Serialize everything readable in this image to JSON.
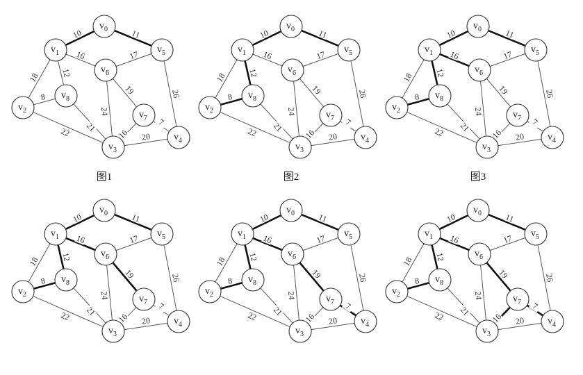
{
  "nodes": [
    {
      "id": "v0",
      "name": "v",
      "sub": "0"
    },
    {
      "id": "v1",
      "name": "v",
      "sub": "1"
    },
    {
      "id": "v2",
      "name": "v",
      "sub": "2"
    },
    {
      "id": "v3",
      "name": "v",
      "sub": "3"
    },
    {
      "id": "v4",
      "name": "v",
      "sub": "4"
    },
    {
      "id": "v5",
      "name": "v",
      "sub": "5"
    },
    {
      "id": "v6",
      "name": "v",
      "sub": "6"
    },
    {
      "id": "v7",
      "name": "v",
      "sub": "7"
    },
    {
      "id": "v8",
      "name": "v",
      "sub": "8"
    }
  ],
  "edges": [
    {
      "from": "v0",
      "to": "v1",
      "weight": "10"
    },
    {
      "from": "v0",
      "to": "v5",
      "weight": "11"
    },
    {
      "from": "v1",
      "to": "v2",
      "weight": "18"
    },
    {
      "from": "v1",
      "to": "v8",
      "weight": "12"
    },
    {
      "from": "v1",
      "to": "v6",
      "weight": "16"
    },
    {
      "from": "v6",
      "to": "v5",
      "weight": "17"
    },
    {
      "from": "v5",
      "to": "v4",
      "weight": "26"
    },
    {
      "from": "v2",
      "to": "v8",
      "weight": "8"
    },
    {
      "from": "v2",
      "to": "v3",
      "weight": "22"
    },
    {
      "from": "v8",
      "to": "v3",
      "weight": "21"
    },
    {
      "from": "v6",
      "to": "v3",
      "weight": "24"
    },
    {
      "from": "v6",
      "to": "v7",
      "weight": "19"
    },
    {
      "from": "v7",
      "to": "v3",
      "weight": "16"
    },
    {
      "from": "v7",
      "to": "v4",
      "weight": "7"
    },
    {
      "from": "v3",
      "to": "v4",
      "weight": "20"
    }
  ],
  "panels": [
    {
      "caption": "图1",
      "bold_edges": [
        "v0-v1",
        "v0-v5"
      ]
    },
    {
      "caption": "图2",
      "bold_edges": [
        "v0-v1",
        "v0-v5",
        "v1-v8",
        "v2-v8"
      ]
    },
    {
      "caption": "图3",
      "bold_edges": [
        "v0-v1",
        "v0-v5",
        "v1-v8",
        "v2-v8",
        "v1-v6"
      ]
    },
    {
      "caption": "",
      "bold_edges": [
        "v0-v1",
        "v0-v5",
        "v1-v8",
        "v2-v8",
        "v1-v6",
        "v6-v7"
      ]
    },
    {
      "caption": "",
      "bold_edges": [
        "v0-v1",
        "v0-v5",
        "v1-v8",
        "v2-v8",
        "v1-v6",
        "v6-v7",
        "v7-v4"
      ]
    },
    {
      "caption": "",
      "bold_edges": [
        "v0-v1",
        "v0-v5",
        "v1-v8",
        "v2-v8",
        "v1-v6",
        "v6-v7",
        "v7-v4",
        "v7-v3"
      ]
    }
  ]
}
